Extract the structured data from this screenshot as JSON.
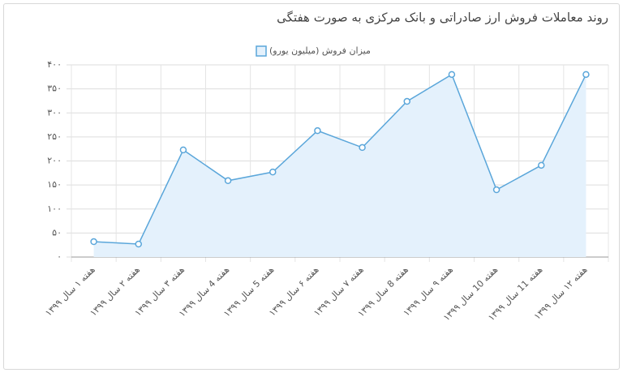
{
  "chart_data": {
    "type": "line",
    "title": "روند معاملات فروش ارز صادراتی و بانک مرکزی به صورت هفتگی",
    "categories": [
      "هفته ۱ سال ۱۳۹۹",
      "هفته ۲ سال ۱۳۹۹",
      "هفته ۳ سال ۱۳۹۹",
      "هفته 4 سال ۱۳۹۹",
      "هفته 5 سال ۱۳۹۹",
      "هفته ۶ سال ۱۳۹۹",
      "هفته ۷ سال ۱۳۹۹",
      "هفته 8 سال ۱۳۹۹",
      "هفته ۹ سال ۱۳۹۹",
      "هفته 10 سال ۱۳۹۹",
      "هفته 11 سال ۱۳۹۹",
      "هفته ۱۲ سال ۱۳۹۹"
    ],
    "series": [
      {
        "name": "میزان فروش (میلیون یورو)",
        "color": "#5aa6da",
        "fill": "#e4f1fc",
        "values": [
          32,
          27,
          223,
          159,
          177,
          263,
          228,
          324,
          380,
          140,
          191,
          380
        ]
      }
    ],
    "ylim": [
      0,
      400
    ],
    "yticks": [
      {
        "value": 0,
        "label": "۰"
      },
      {
        "value": 50,
        "label": "۵۰"
      },
      {
        "value": 100,
        "label": "۱۰۰"
      },
      {
        "value": 150,
        "label": "۱۵۰"
      },
      {
        "value": 200,
        "label": "۲۰۰"
      },
      {
        "value": 250,
        "label": "۲۵۰"
      },
      {
        "value": 300,
        "label": "۳۰۰"
      },
      {
        "value": 350,
        "label": "۳۵۰"
      },
      {
        "value": 400,
        "label": "۴۰۰"
      }
    ],
    "grid": true,
    "legend": "top"
  }
}
